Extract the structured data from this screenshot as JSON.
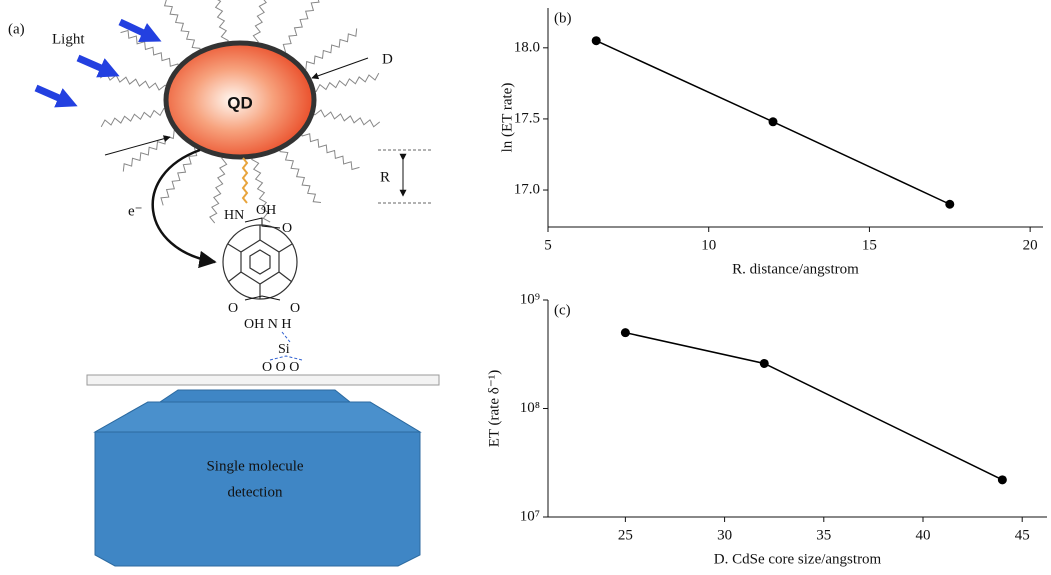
{
  "diagram": {
    "panel": "(a)",
    "light": "Light",
    "d": "D",
    "qd": "QD",
    "r": "R",
    "electron": "e⁻",
    "hn": "HN",
    "oh_top": "OH",
    "o_top_right": "O",
    "o_bottom_left": "O",
    "o_bottom_right": "O",
    "oh_nh": "OH N H",
    "si": "Si",
    "ooo": "O O O",
    "detector_line1": "Single molecule",
    "detector_line2": "detection"
  },
  "chart_data": [
    {
      "type": "line",
      "label": "(b)",
      "x_label": "R. distance/angstrom",
      "y_label": "ln (ET rate)",
      "x": [
        6.5,
        12,
        17.5
      ],
      "values": [
        18.05,
        17.48,
        16.9
      ],
      "color": "#000000",
      "xlim": [
        5,
        20.4
      ],
      "ylim": [
        16.74,
        18.28
      ],
      "xticks": [
        5,
        10,
        15,
        20
      ],
      "yticks": [
        {
          "value": 17,
          "label": "17.0"
        },
        {
          "value": 17.5,
          "label": "17.5"
        },
        {
          "value": 18,
          "label": "18.0"
        }
      ],
      "log_y": false
    },
    {
      "type": "line",
      "label": "(c)",
      "x_label": "D. CdSe core size/angstrom",
      "y_label": "ET (rate δ⁻¹)",
      "x": [
        25,
        32,
        44
      ],
      "values": [
        500000000,
        260000000,
        22000000
      ],
      "color": "#000000",
      "xlim": [
        21.1,
        46.25
      ],
      "ylim": [
        10000000,
        1000000000
      ],
      "xticks": [
        25,
        30,
        35,
        40,
        45
      ],
      "yticks": [
        {
          "value": 10000000,
          "label": "10⁷"
        },
        {
          "value": 100000000,
          "label": "10⁸"
        },
        {
          "value": 1000000000,
          "label": "10⁹"
        }
      ],
      "log_y": true
    }
  ]
}
